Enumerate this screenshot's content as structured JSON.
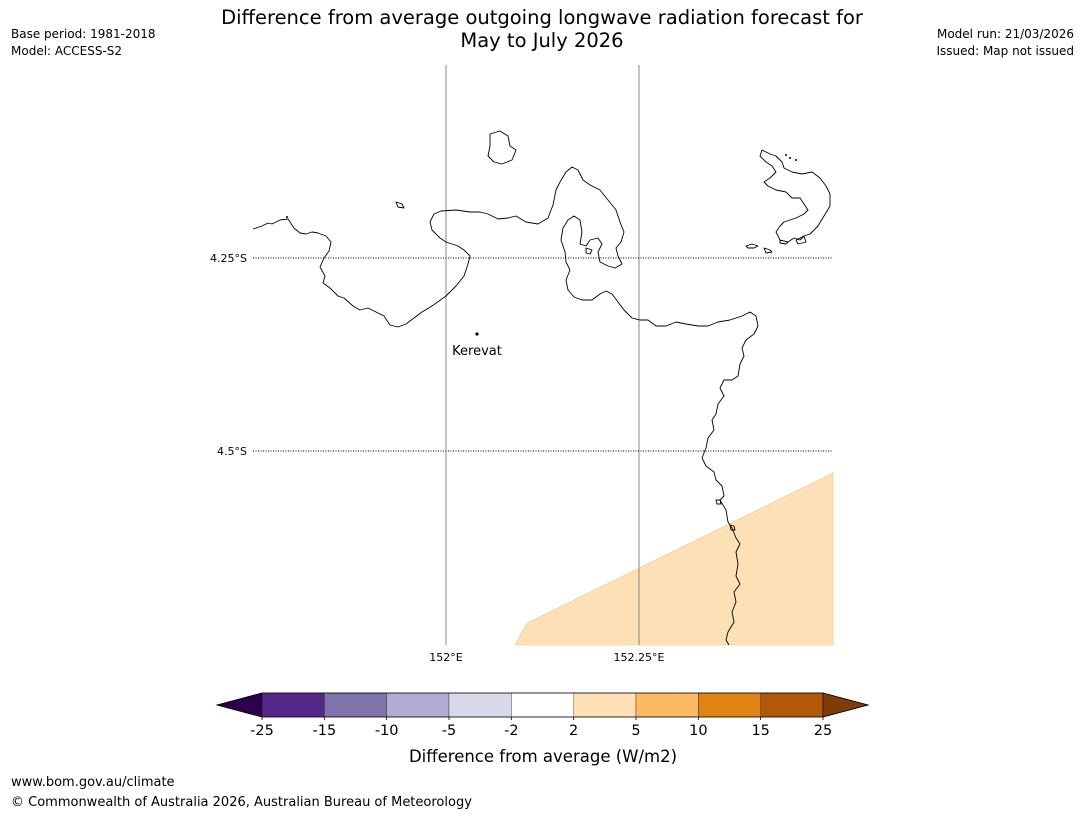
{
  "header": {
    "title_line1": "Difference from average outgoing longwave radiation forecast for",
    "title_line2": "May to July 2026",
    "base_period": "Base period: 1981-2018",
    "model": "Model: ACCESS-S2",
    "model_run": "Model run: 21/03/2026",
    "issued": "Issued: Map not issued"
  },
  "map": {
    "lat_labels": [
      "4.25°S",
      "4.5°S"
    ],
    "lon_labels": [
      "152°E",
      "152.25°E"
    ],
    "place": {
      "name": "Kerevat"
    },
    "shaded_anomaly_color": "#fde0b6",
    "coastline_color": "#000000",
    "gridline_color": "#888888"
  },
  "colorbar": {
    "title": "Difference from average (W/m2)",
    "tick_labels": [
      "-25",
      "-15",
      "-10",
      "-5",
      "-2",
      "2",
      "5",
      "10",
      "15",
      "25"
    ],
    "bins": [
      {
        "range": "< -25",
        "color": "#2d004b"
      },
      {
        "range": "-25 to -15",
        "color": "#542788"
      },
      {
        "range": "-15 to -10",
        "color": "#8073ac"
      },
      {
        "range": "-10 to -5",
        "color": "#b2abd2"
      },
      {
        "range": "-5 to -2",
        "color": "#d8daeb"
      },
      {
        "range": "-2 to 2",
        "color": "#ffffff"
      },
      {
        "range": "2 to 5",
        "color": "#fee0b6"
      },
      {
        "range": "5 to 10",
        "color": "#fdb863"
      },
      {
        "range": "10 to 15",
        "color": "#e08214"
      },
      {
        "range": "15 to 25",
        "color": "#b35806"
      },
      {
        "range": "> 25",
        "color": "#7f3b08"
      }
    ]
  },
  "footer": {
    "url": "www.bom.gov.au/climate",
    "copyright": "© Commonwealth of Australia 2026, Australian Bureau of Meteorology"
  }
}
